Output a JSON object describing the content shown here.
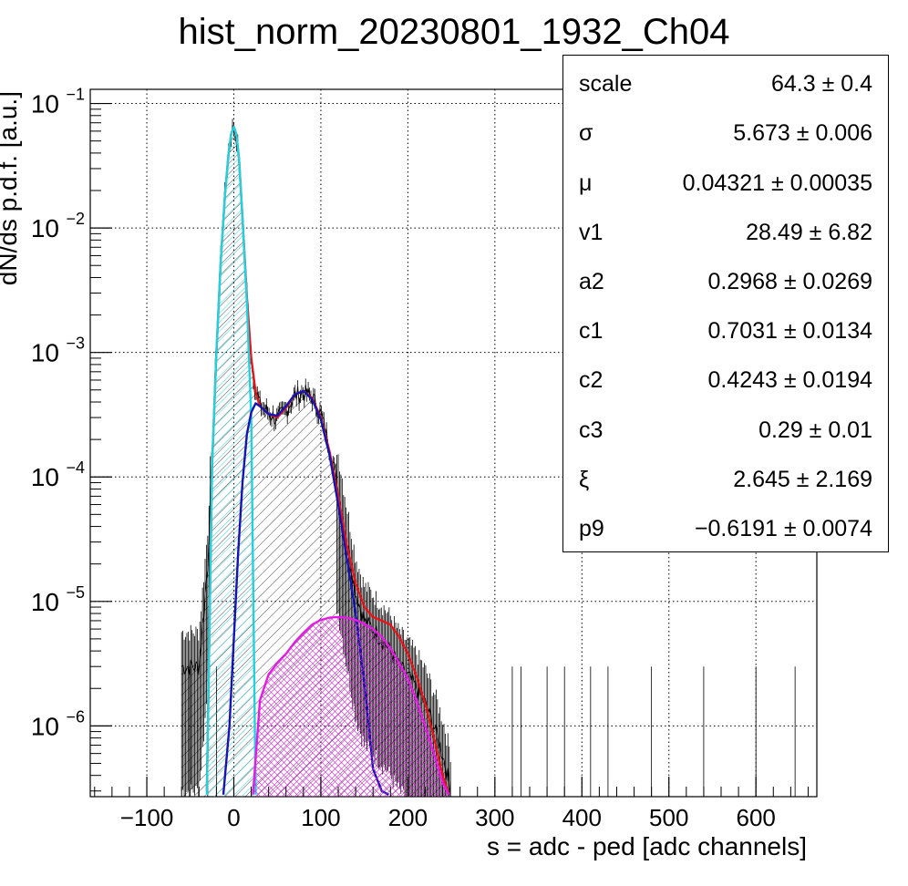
{
  "chart_data": {
    "type": "line",
    "title": "hist_norm_20230801_1932_Ch04",
    "xlabel": "s = adc - ped [adc channels]",
    "ylabel": "dN/ds p.d.f. [a.u.]",
    "x_scale": "linear",
    "y_scale": "log",
    "xlim": [
      -165,
      670
    ],
    "ylim": [
      2.7e-07,
      0.13
    ],
    "x_ticks": [
      "−100",
      "0",
      "100",
      "200",
      "300",
      "400",
      "500",
      "600"
    ],
    "x_tick_values": [
      -100,
      0,
      100,
      200,
      300,
      400,
      500,
      600
    ],
    "y_ticks": [
      {
        "base": "10",
        "exp": "−1",
        "value": 0.1
      },
      {
        "base": "10",
        "exp": "−2",
        "value": 0.01
      },
      {
        "base": "10",
        "exp": "−3",
        "value": 0.001
      },
      {
        "base": "10",
        "exp": "−4",
        "value": 0.0001
      },
      {
        "base": "10",
        "exp": "−5",
        "value": 1e-05
      },
      {
        "base": "10",
        "exp": "−6",
        "value": 1e-06
      }
    ],
    "grid": true,
    "series": [
      {
        "color": "#000000",
        "style": "histogram",
        "x": [
          -60,
          -40,
          -30,
          -25,
          -20,
          -15,
          -10,
          -6,
          -3,
          0,
          3,
          6,
          10,
          15,
          20,
          25,
          30,
          40,
          50,
          60,
          70,
          80,
          90,
          100,
          110,
          120,
          130,
          140,
          150,
          160,
          170,
          180,
          190,
          200,
          210,
          220,
          230,
          240,
          250
        ],
        "y": [
          3e-06,
          3e-06,
          2e-05,
          0.00015,
          0.0012,
          0.006,
          0.02,
          0.042,
          0.058,
          0.065,
          0.055,
          0.035,
          0.012,
          0.003,
          0.0009,
          0.0005,
          0.00038,
          0.00033,
          0.00029,
          0.00035,
          0.00045,
          0.00048,
          0.00044,
          0.00032,
          0.00018,
          8e-05,
          3e-05,
          1.2e-05,
          7e-06,
          6e-06,
          5e-06,
          4e-06,
          3e-06,
          2.5e-06,
          2e-06,
          1.5e-06,
          1e-06,
          6e-07,
          3e-07
        ]
      },
      {
        "color": "#e8141a",
        "style": "line",
        "x": [
          -31,
          -25,
          -20,
          -15,
          -10,
          -6,
          -3,
          0,
          3,
          6,
          10,
          15,
          20,
          25,
          30,
          40,
          50,
          60,
          70,
          80,
          90,
          100,
          110,
          120,
          130,
          140,
          150,
          160,
          170,
          180,
          190,
          200,
          210,
          220,
          230,
          240,
          247
        ],
        "y": [
          3e-07,
          0.00012,
          0.001,
          0.0055,
          0.019,
          0.04,
          0.057,
          0.065,
          0.056,
          0.036,
          0.012,
          0.0028,
          0.0009,
          0.00048,
          0.00037,
          0.00032,
          0.0003,
          0.00036,
          0.00046,
          0.00049,
          0.00043,
          0.0003,
          0.00016,
          7e-05,
          2.8e-05,
          1.4e-05,
          9e-06,
          7.5e-06,
          7e-06,
          6.5e-06,
          5.2e-06,
          3.8e-06,
          2.5e-06,
          1.5e-06,
          8e-07,
          4e-07,
          2.8e-07
        ]
      },
      {
        "color": "#1fd2df",
        "style": "line-hatched",
        "x": [
          -31,
          -25,
          -20,
          -15,
          -10,
          -6,
          -3,
          0,
          3,
          6,
          10,
          15,
          20,
          25
        ],
        "y": [
          2.8e-07,
          0.00012,
          0.001,
          0.0055,
          0.019,
          0.04,
          0.057,
          0.065,
          0.056,
          0.036,
          0.012,
          0.0025,
          0.0003,
          2.8e-07
        ]
      },
      {
        "color": "#1414b4",
        "style": "line-hatched",
        "x": [
          -12,
          -5,
          0,
          5,
          10,
          15,
          20,
          25,
          30,
          40,
          50,
          60,
          70,
          80,
          90,
          100,
          110,
          120,
          130,
          140,
          150,
          160,
          170,
          178
        ],
        "y": [
          2.8e-07,
          1e-06,
          5e-06,
          2.5e-05,
          9e-05,
          0.00022,
          0.00033,
          0.00039,
          0.00037,
          0.00032,
          0.00031,
          0.00037,
          0.00046,
          0.00049,
          0.00042,
          0.00029,
          0.00015,
          6e-05,
          2.2e-05,
          8e-06,
          2.2e-06,
          4.5e-07,
          3e-07,
          2.8e-07
        ]
      },
      {
        "color": "#e61ae6",
        "style": "line-crosshatched",
        "x": [
          22,
          30,
          40,
          50,
          60,
          70,
          80,
          90,
          100,
          110,
          120,
          130,
          140,
          150,
          160,
          170,
          180,
          190,
          200,
          210,
          220,
          230,
          240,
          247
        ],
        "y": [
          2.8e-07,
          1.6e-06,
          2.6e-06,
          3.2e-06,
          3.8e-06,
          4.7e-06,
          5.6e-06,
          6.5e-06,
          7.1e-06,
          7.4e-06,
          7.5e-06,
          7.4e-06,
          7.1e-06,
          6.6e-06,
          6e-06,
          5.2e-06,
          4.2e-06,
          3.2e-06,
          2.4e-06,
          1.6e-06,
          1e-06,
          6e-07,
          3.5e-07,
          2.8e-07
        ]
      }
    ],
    "legend": "none"
  },
  "stats_box": {
    "rows": [
      {
        "name": "scale",
        "value": "64.3 ± 0.4"
      },
      {
        "name": "σ",
        "value": "5.673 ± 0.006"
      },
      {
        "name": "μ",
        "value": "0.04321 ± 0.00035"
      },
      {
        "name": "v1",
        "value": "28.49 ± 6.82"
      },
      {
        "name": "a2",
        "value": "0.2968 ± 0.0269"
      },
      {
        "name": "c1",
        "value": "0.7031 ± 0.0134"
      },
      {
        "name": "c2",
        "value": "0.4243 ± 0.0194"
      },
      {
        "name": "c3",
        "value": "0.29 ± 0.01"
      },
      {
        "name": "ξ",
        "value": "2.645 ± 2.169"
      },
      {
        "name": "p9",
        "value": "−0.6191 ± 0.0074"
      }
    ]
  }
}
